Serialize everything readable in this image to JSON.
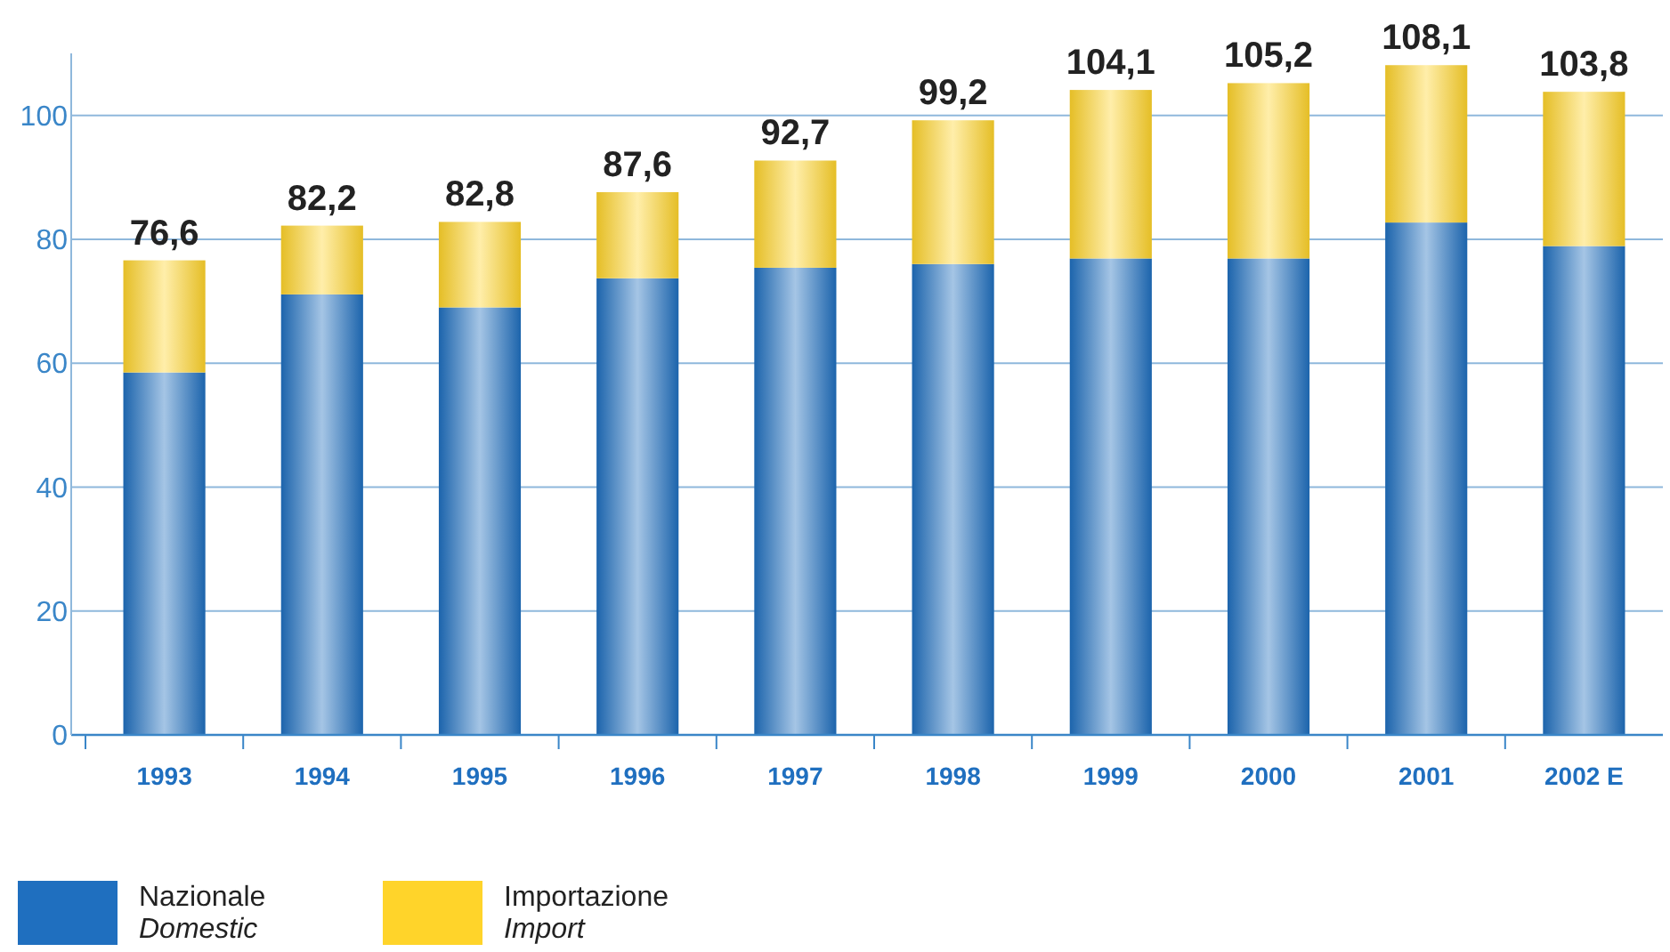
{
  "chart_data": {
    "type": "bar",
    "stacked": true,
    "categories": [
      "1993",
      "1994",
      "1995",
      "1996",
      "1997",
      "1998",
      "1999",
      "2000",
      "2001",
      "2002 E"
    ],
    "series": [
      {
        "name": "Nazionale\nDomestic",
        "color": "#1f6fbf",
        "values": [
          58.5,
          71.1,
          69.0,
          73.7,
          75.4,
          76.0,
          76.9,
          76.9,
          82.7,
          78.9
        ]
      },
      {
        "name": "Importazione\nImport",
        "color": "#ffd42a",
        "values": [
          18.1,
          11.1,
          13.8,
          13.9,
          17.3,
          23.2,
          27.2,
          28.3,
          25.4,
          24.9
        ]
      }
    ],
    "totals": [
      "76,6",
      "82,2",
      "82,8",
      "87,6",
      "92,7",
      "99,2",
      "104,1",
      "105,2",
      "108,1",
      "103,8"
    ],
    "ylim": [
      0,
      110
    ],
    "yticks": [
      0,
      20,
      40,
      60,
      80,
      100
    ],
    "grid": "y",
    "legend": "bottom left"
  }
}
